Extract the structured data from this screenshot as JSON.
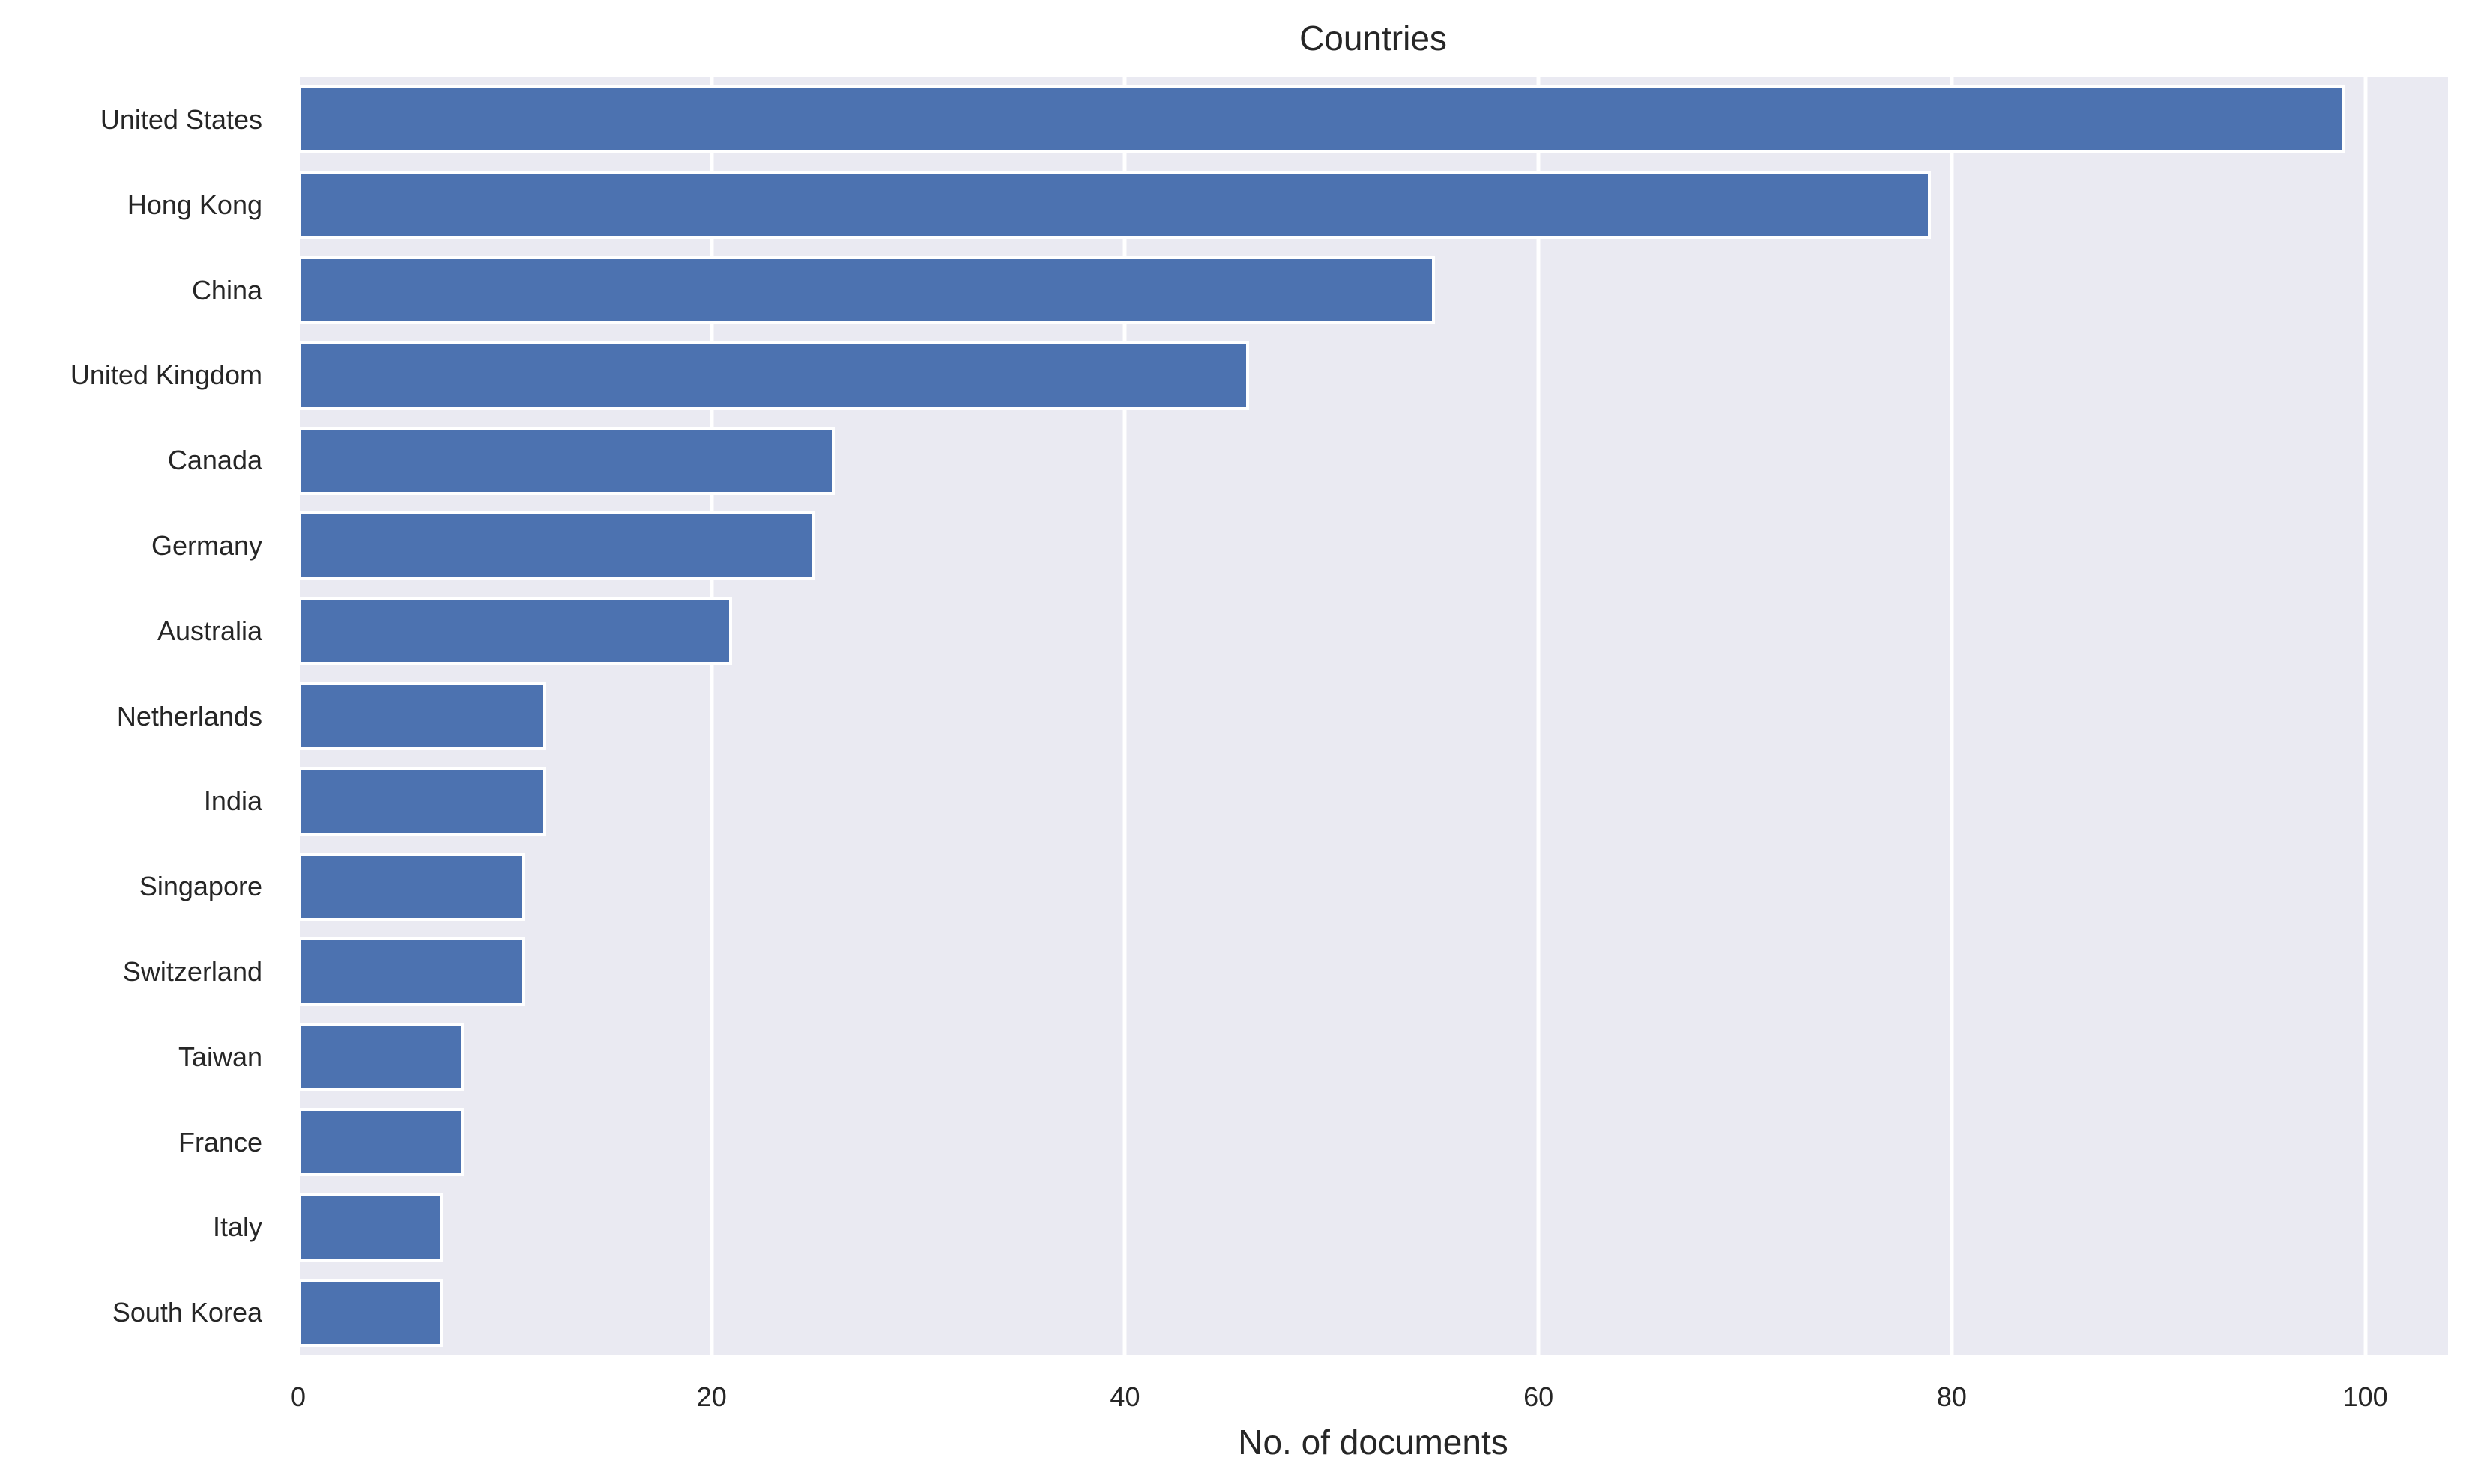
{
  "chart_data": {
    "type": "bar",
    "orientation": "horizontal",
    "title": "Countries",
    "xlabel": "No. of documents",
    "ylabel": "",
    "categories": [
      "United States",
      "Hong Kong",
      "China",
      "United Kingdom",
      "Canada",
      "Germany",
      "Australia",
      "Netherlands",
      "India",
      "Singapore",
      "Switzerland",
      "Taiwan",
      "France",
      "Italy",
      "South Korea"
    ],
    "values": [
      99,
      79,
      55,
      46,
      26,
      25,
      21,
      12,
      12,
      11,
      11,
      8,
      8,
      7,
      7
    ],
    "xticks": [
      0,
      20,
      40,
      60,
      80,
      100
    ],
    "xlim": [
      0,
      104
    ],
    "grid": true,
    "legend": "none",
    "bar_height_fraction": 0.8,
    "colors": {
      "bar": "#4C72B0",
      "bar_edge": "#ffffff",
      "plot_background": "#EAEAF2",
      "page_background": "#ffffff",
      "gridline": "#ffffff",
      "text": "#262626"
    }
  }
}
